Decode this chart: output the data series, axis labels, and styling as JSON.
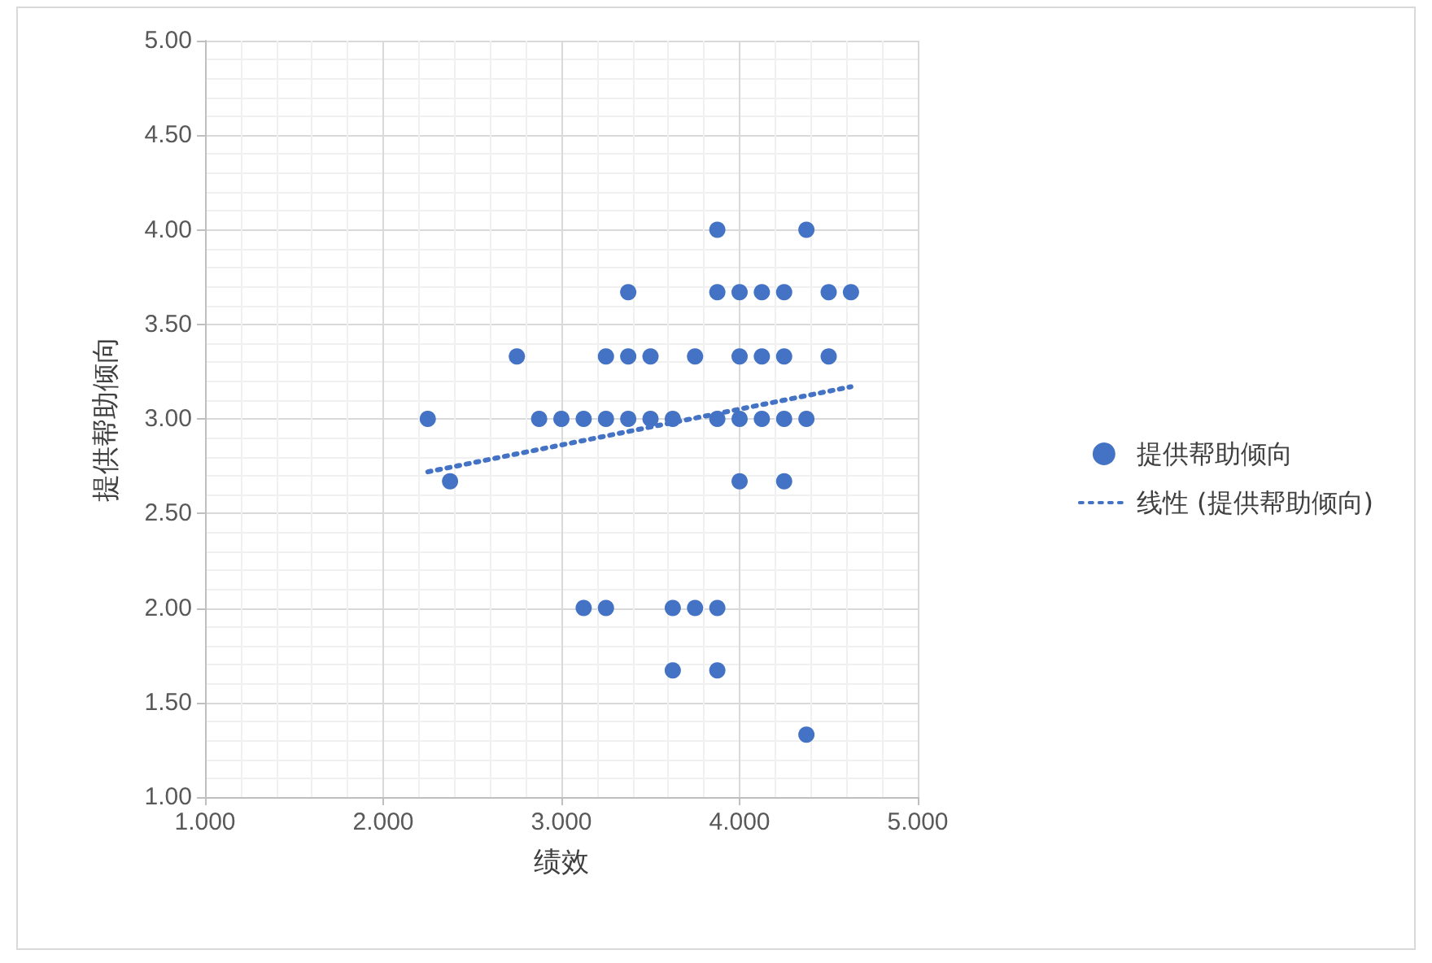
{
  "chart_data": {
    "type": "scatter",
    "xlabel": "绩效",
    "ylabel": "提供帮助倾向",
    "legend": "right",
    "grid": true,
    "xlim": [
      1,
      5
    ],
    "xticks": [
      {
        "value": 1,
        "label": "1.000"
      },
      {
        "value": 2,
        "label": "2.000"
      },
      {
        "value": 3,
        "label": "3.000"
      },
      {
        "value": 4,
        "label": "4.000"
      },
      {
        "value": 5,
        "label": "5.000"
      }
    ],
    "ylim": [
      1,
      5
    ],
    "yticks": [
      {
        "value": 1,
        "label": "1.00"
      },
      {
        "value": 1.5,
        "label": "1.50"
      },
      {
        "value": 2,
        "label": "2.00"
      },
      {
        "value": 2.5,
        "label": "2.50"
      },
      {
        "value": 3,
        "label": "3.00"
      },
      {
        "value": 3.5,
        "label": "3.50"
      },
      {
        "value": 4,
        "label": "4.00"
      },
      {
        "value": 4.5,
        "label": "4.50"
      },
      {
        "value": 5,
        "label": "5.00"
      }
    ],
    "series": [
      {
        "name": "提供帮助倾向",
        "marker": "circle",
        "color": "#4472c4",
        "x": [
          3.875,
          4.375,
          3.375,
          3.875,
          4.0,
          4.125,
          4.25,
          4.5,
          4.625,
          2.75,
          3.25,
          3.375,
          3.5,
          3.75,
          4.0,
          4.125,
          4.25,
          4.5,
          2.25,
          2.875,
          3.0,
          3.125,
          3.25,
          3.375,
          3.5,
          3.625,
          3.875,
          4.0,
          4.125,
          4.25,
          4.375,
          2.375,
          4.0,
          4.25,
          3.125,
          3.25,
          3.625,
          3.75,
          3.875,
          3.625,
          3.875,
          4.375
        ],
        "values": [
          4.0,
          4.0,
          3.67,
          3.67,
          3.67,
          3.67,
          3.67,
          3.67,
          3.67,
          3.33,
          3.33,
          3.33,
          3.33,
          3.33,
          3.33,
          3.33,
          3.33,
          3.33,
          3.0,
          3.0,
          3.0,
          3.0,
          3.0,
          3.0,
          3.0,
          3.0,
          3.0,
          3.0,
          3.0,
          3.0,
          3.0,
          2.67,
          2.67,
          2.67,
          2.0,
          2.0,
          2.0,
          2.0,
          2.0,
          1.67,
          1.67,
          1.33
        ]
      },
      {
        "name": "线性 (提供帮助倾向)",
        "type": "line",
        "marker": "none",
        "line_style": "dotted",
        "color": "#4472c4",
        "x": [
          2.25,
          4.625
        ],
        "values": [
          2.72,
          3.17
        ]
      }
    ]
  }
}
